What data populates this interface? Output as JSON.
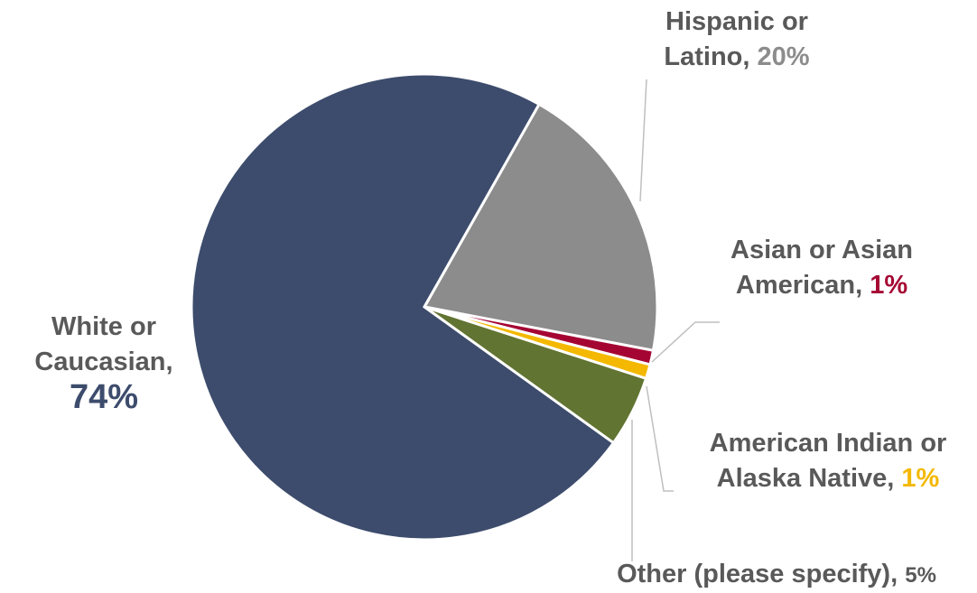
{
  "chart_data": {
    "type": "pie",
    "title": "",
    "slices": [
      {
        "name": "White or Caucasian",
        "value": 74,
        "color": "#3D4C6C",
        "label_line1": "White or",
        "label_line2": "Caucasian",
        "label_pct": "74%"
      },
      {
        "name": "Hispanic or Latino",
        "value": 20,
        "color": "#8C8C8C",
        "label_line1": "Hispanic or",
        "label_line2": "Latino",
        "label_pct": "20%"
      },
      {
        "name": "Asian or Asian American",
        "value": 1,
        "color": "#A50533",
        "label_line1": "Asian or Asian",
        "label_line2": "American",
        "label_pct": "1%"
      },
      {
        "name": "American Indian or Alaska Native",
        "value": 1,
        "color": "#F4B800",
        "label_line1": "American Indian or",
        "label_line2": "Alaska Native",
        "label_pct": "1%"
      },
      {
        "name": "Other (please specify)",
        "value": 5,
        "color": "#617432",
        "label_line1": "Other (please specify)",
        "label_line2": "",
        "label_pct": "5%"
      }
    ],
    "legend": "none",
    "data_labels": "outside with leader lines"
  }
}
